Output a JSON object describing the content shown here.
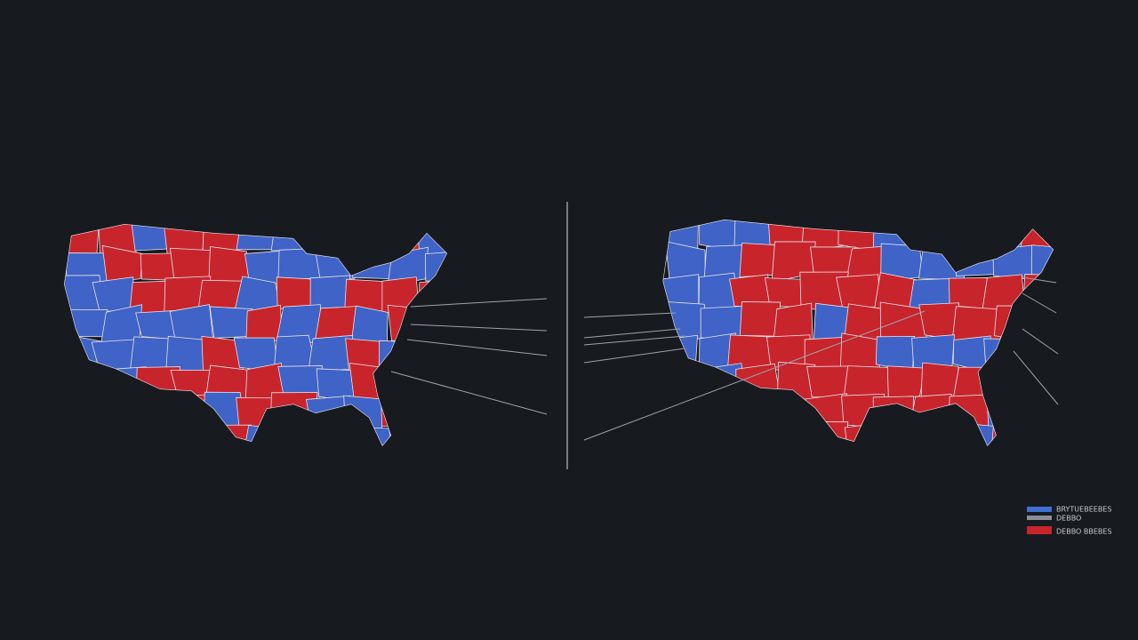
{
  "legend": {
    "items": [
      {
        "label": "BRYTUEBEEBES"
      },
      {
        "label": "DEBBO"
      },
      {
        "label": "DEBBO BBEBES"
      }
    ]
  }
}
